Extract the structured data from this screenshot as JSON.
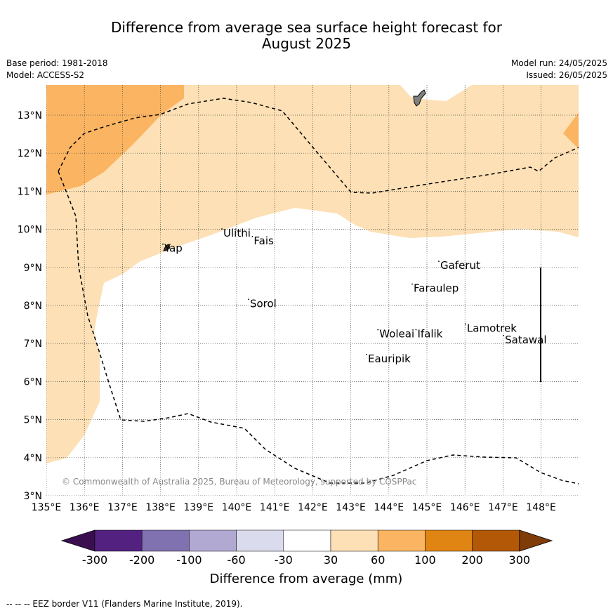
{
  "title_line1": "Difference from average sea surface height forecast for",
  "title_line2": "August 2025",
  "meta_left": {
    "base_period": "Base period: 1981-2018",
    "model": "Model: ACCESS-S2"
  },
  "meta_right": {
    "model_run": "Model run: 24/05/2025",
    "issued": "Issued: 26/05/2025"
  },
  "map": {
    "lon_range": [
      135,
      149
    ],
    "lat_range": [
      3,
      13.8
    ],
    "lon_ticks": [
      "135°E",
      "136°E",
      "137°E",
      "138°E",
      "139°E",
      "140°E",
      "141°E",
      "142°E",
      "143°E",
      "144°E",
      "145°E",
      "146°E",
      "147°E",
      "148°E"
    ],
    "lat_ticks": [
      "3°N",
      "4°N",
      "5°N",
      "6°N",
      "7°N",
      "8°N",
      "9°N",
      "10°N",
      "11°N",
      "12°N",
      "13°N"
    ],
    "grid": true,
    "places": [
      {
        "name": "Yap",
        "lon": 138.1,
        "lat": 9.5
      },
      {
        "name": "Ulithi",
        "lon": 139.65,
        "lat": 9.9
      },
      {
        "name": "Fais",
        "lon": 140.45,
        "lat": 9.7
      },
      {
        "name": "Gaferut",
        "lon": 145.35,
        "lat": 9.05
      },
      {
        "name": "Faraulep",
        "lon": 144.65,
        "lat": 8.45
      },
      {
        "name": "Sorol",
        "lon": 140.35,
        "lat": 8.05
      },
      {
        "name": "Lamotrek",
        "lon": 146.05,
        "lat": 7.4
      },
      {
        "name": "Woleai",
        "lon": 143.75,
        "lat": 7.25
      },
      {
        "name": "Ifalik",
        "lon": 144.75,
        "lat": 7.25
      },
      {
        "name": "Satawal",
        "lon": 147.05,
        "lat": 7.1
      },
      {
        "name": "Eauripik",
        "lon": 143.45,
        "lat": 6.6
      }
    ],
    "copyright": "© Commonwealth of Australia 2025, Bureau of Meteorology, supported by COSPPac"
  },
  "colorbar": {
    "title": "Difference from average (mm)",
    "tick_labels": [
      "-300",
      "-200",
      "-100",
      "-60",
      "-30",
      "30",
      "60",
      "100",
      "200",
      "300"
    ],
    "colors": [
      "#3b0f4f",
      "#532180",
      "#8071b0",
      "#b2a9d2",
      "#dadbed",
      "#ffffff",
      "#fde0b5",
      "#fbb562",
      "#e08514",
      "#b35806",
      "#7f3b08"
    ]
  },
  "footer": "-- -- -- EEZ border V11 (Flanders Marine Institute, 2019)."
}
